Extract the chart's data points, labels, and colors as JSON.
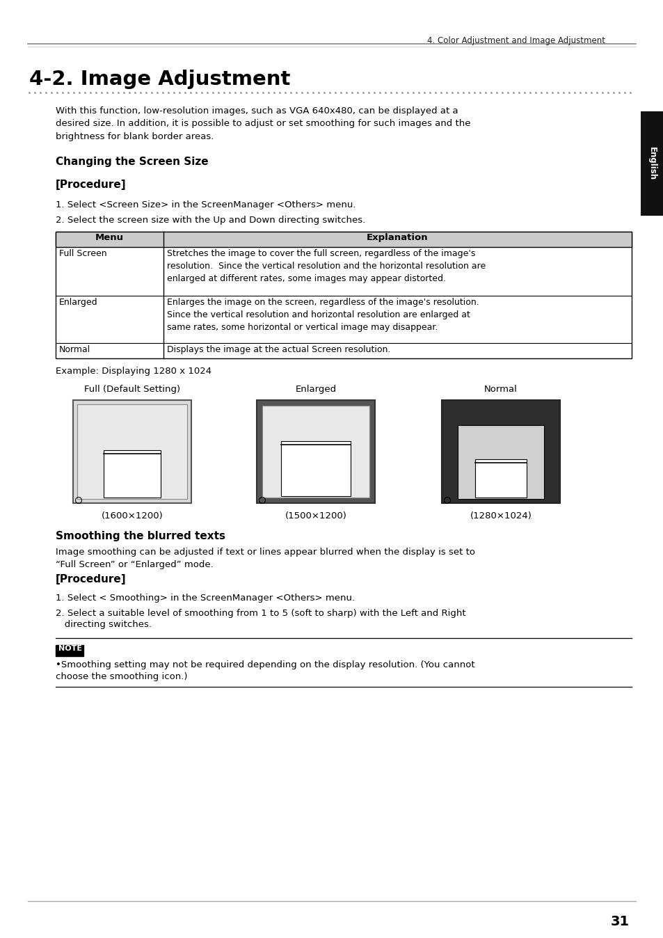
{
  "page_header": "4. Color Adjustment and Image Adjustment",
  "title": "4-2. Image Adjustment",
  "intro_text": "With this function, low-resolution images, such as VGA 640x480, can be displayed at a\ndesired size. In addition, it is possible to adjust or set smoothing for such images and the\nbrightness for blank border areas.",
  "section1_title": "Changing the Screen Size",
  "section1_sub": "[Procedure]",
  "step1": "1. Select <Screen Size> in the ScreenManager <Others> menu.",
  "step2": "2. Select the screen size with the Up and Down directing switches.",
  "table_headers": [
    "Menu",
    "Explanation"
  ],
  "table_rows": [
    [
      "Full Screen",
      "Stretches the image to cover the full screen, regardless of the image's\nresolution.  Since the vertical resolution and the horizontal resolution are\nenlarged at different rates, some images may appear distorted."
    ],
    [
      "Enlarged",
      "Enlarges the image on the screen, regardless of the image's resolution.\nSince the vertical resolution and horizontal resolution are enlarged at\nsame rates, some horizontal or vertical image may disappear."
    ],
    [
      "Normal",
      "Displays the image at the actual Screen resolution."
    ]
  ],
  "example_text": "Example: Displaying 1280 x 1024",
  "display_labels": [
    "Full (Default Setting)",
    "Enlarged",
    "Normal"
  ],
  "display_resolutions": [
    "(1600×1200)",
    "(1500×1200)",
    "(1280×1024)"
  ],
  "section2_title": "Smoothing the blurred texts",
  "section2_intro": "Image smoothing can be adjusted if text or lines appear blurred when the display is set to\n“Full Screen” or “Enlarged” mode.",
  "section2_sub": "[Procedure]",
  "step3": "1. Select < Smoothing> in the ScreenManager <Others> menu.",
  "step4_line1": "2. Select a suitable level of smoothing from 1 to 5 (soft to sharp) with the Left and Right",
  "step4_line2": "   directing switches.",
  "note_label": "NOTE",
  "note_text_line1": "•Smoothing setting may not be required depending on the display resolution. (You cannot",
  "note_text_line2": "choose the smoothing icon.)",
  "page_number": "31",
  "sidebar_text": "English",
  "bg_color": "#ffffff"
}
